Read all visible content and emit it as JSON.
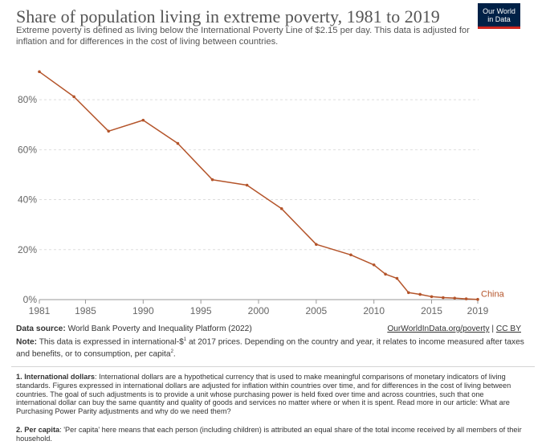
{
  "header": {
    "title": "Share of population living in extreme poverty, 1981 to 2019",
    "subtitle": "Extreme poverty is defined as living below the International Poverty Line of $2.15 per day. This data is adjusted for inflation and for differences in the cost of living between countries.",
    "logo_line1": "Our World",
    "logo_line2": "in Data"
  },
  "colors": {
    "series": "#b4542a",
    "logo_bg": "#002147",
    "logo_accent": "#ce261e",
    "grid": "#dddddd"
  },
  "chart_data": {
    "type": "line",
    "title": "Share of population living in extreme poverty, 1981 to 2019",
    "xlabel": "",
    "ylabel": "",
    "xlim": [
      1981,
      2019
    ],
    "ylim": [
      0,
      100
    ],
    "x_ticks": [
      1981,
      1985,
      1990,
      1995,
      2000,
      2005,
      2010,
      2015,
      2019
    ],
    "x_tick_labels": [
      "1981",
      "1985",
      "1990",
      "1995",
      "2000",
      "2005",
      "2010",
      "2015",
      "2019"
    ],
    "y_ticks": [
      0,
      20,
      40,
      60,
      80
    ],
    "y_tick_labels": [
      "0%",
      "20%",
      "40%",
      "60%",
      "80%"
    ],
    "grid": true,
    "series": [
      {
        "name": "China",
        "x": [
          1981,
          1984,
          1987,
          1990,
          1993,
          1996,
          1999,
          2002,
          2005,
          2008,
          2010,
          2011,
          2012,
          2013,
          2014,
          2015,
          2016,
          2017,
          2018,
          2019
        ],
        "values": [
          91.2,
          81.2,
          67.4,
          71.8,
          62.5,
          48.0,
          45.8,
          36.4,
          22.1,
          17.9,
          13.9,
          10.2,
          8.5,
          2.8,
          2.1,
          1.2,
          0.8,
          0.6,
          0.3,
          0.1
        ]
      }
    ]
  },
  "footer": {
    "source_label": "Data source:",
    "source_text": "World Bank Poverty and Inequality Platform (2022)",
    "link_text": "OurWorldInData.org/poverty",
    "license_sep": " | ",
    "license_text": "CC BY",
    "note_label": "Note:",
    "note_text_a": "This data is expressed in international-$",
    "note_sup1": "1",
    "note_text_b": " at 2017 prices. Depending on the country and year, it relates to income measured after taxes and benefits, or to consumption, per capita",
    "note_sup2": "2",
    "note_text_c": "."
  },
  "footnotes": [
    {
      "label": "1. International dollars",
      "text": ": International dollars are a hypothetical currency that is used to make meaningful comparisons of monetary indicators of living standards. Figures expressed in international dollars are adjusted for inflation within countries over time, and for differences in the cost of living between countries. The goal of such adjustments is to provide a unit whose purchasing power is held fixed over time and across countries, such that one international dollar can buy the same quantity and quality of goods and services no matter where or when it is spent. Read more in our article: What are Purchasing Power Parity adjustments and why do we need them?"
    },
    {
      "label": "2. Per capita",
      "text": ": 'Per capita' here means that each person (including children) is attributed an equal share of the total income received by all members of their household."
    }
  ]
}
